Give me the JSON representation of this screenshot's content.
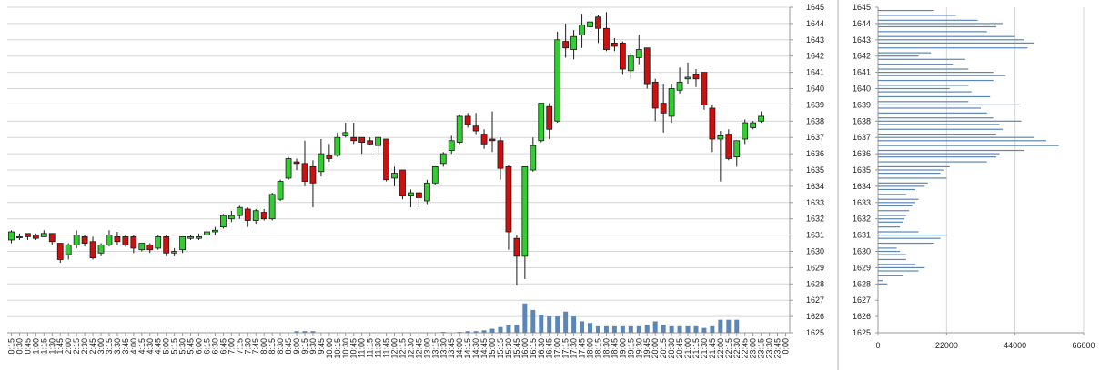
{
  "chart_data": [
    {
      "type": "candlestick",
      "y_ticks": [
        "1625",
        "1626",
        "1627",
        "1628",
        "1629",
        "1630",
        "1631",
        "1632",
        "1633",
        "1634",
        "1635",
        "1636",
        "1637",
        "1638",
        "1639",
        "1640",
        "1641",
        "1642",
        "1643",
        "1644",
        "1645"
      ],
      "ylim": [
        1625,
        1645
      ],
      "x_ticks": [
        "0:15",
        "0:30",
        "0:45",
        "1:00",
        "1:15",
        "1:30",
        "1:45",
        "2:00",
        "2:15",
        "2:30",
        "2:45",
        "3:00",
        "3:15",
        "3:30",
        "3:45",
        "4:00",
        "4:15",
        "4:30",
        "4:45",
        "5:00",
        "5:15",
        "5:30",
        "5:45",
        "6:00",
        "6:15",
        "6:30",
        "6:45",
        "7:00",
        "7:15",
        "7:30",
        "7:45",
        "8:00",
        "8:15",
        "8:30",
        "8:45",
        "9:00",
        "9:15",
        "9:30",
        "9:45",
        "10:00",
        "10:15",
        "10:30",
        "10:45",
        "11:00",
        "11:15",
        "11:30",
        "11:45",
        "12:00",
        "12:15",
        "12:30",
        "12:45",
        "13:00",
        "13:15",
        "13:30",
        "13:45",
        "14:00",
        "14:15",
        "14:30",
        "14:45",
        "15:00",
        "15:15",
        "15:30",
        "15:45",
        "16:00",
        "16:15",
        "16:30",
        "16:45",
        "17:00",
        "17:15",
        "17:30",
        "17:45",
        "18:00",
        "18:15",
        "18:30",
        "18:45",
        "19:00",
        "19:15",
        "19:30",
        "19:45",
        "20:00",
        "20:15",
        "20:30",
        "20:45",
        "21:00",
        "21:15",
        "21:30",
        "21:45",
        "22:00",
        "22:15",
        "22:30",
        "22:45",
        "23:00",
        "23:15",
        "23:30",
        "23:45",
        "0:00"
      ],
      "up_color": "#33cc33",
      "down_color": "#cc1111",
      "volume_color": "#5b86b8",
      "grid": true,
      "candles": [
        [
          1630.7,
          1631.2,
          1630.5,
          1631.3
        ],
        [
          1630.9,
          1630.9,
          1630.7,
          1631.1
        ],
        [
          1631.1,
          1630.9,
          1630.7,
          1631.1
        ],
        [
          1631.0,
          1630.8,
          1630.7,
          1631.1
        ],
        [
          1630.9,
          1631.1,
          1630.9,
          1631.3
        ],
        [
          1631.1,
          1630.6,
          1630.4,
          1631.1
        ],
        [
          1630.5,
          1629.5,
          1629.3,
          1630.5
        ],
        [
          1629.8,
          1630.4,
          1629.5,
          1630.5
        ],
        [
          1630.4,
          1631.0,
          1630.2,
          1631.3
        ],
        [
          1630.9,
          1630.5,
          1630.3,
          1631.0
        ],
        [
          1630.6,
          1629.6,
          1629.5,
          1630.9
        ],
        [
          1629.9,
          1630.4,
          1629.7,
          1630.5
        ],
        [
          1630.4,
          1631.0,
          1630.3,
          1631.3
        ],
        [
          1630.9,
          1630.6,
          1630.4,
          1631.2
        ],
        [
          1630.9,
          1630.4,
          1630.3,
          1631.0
        ],
        [
          1630.9,
          1630.2,
          1629.9,
          1631.0
        ],
        [
          1630.1,
          1630.5,
          1630.0,
          1630.5
        ],
        [
          1630.4,
          1630.1,
          1629.9,
          1630.5
        ],
        [
          1630.2,
          1630.9,
          1630.1,
          1631.0
        ],
        [
          1630.9,
          1629.9,
          1629.7,
          1631.0
        ],
        [
          1629.9,
          1630.0,
          1629.7,
          1630.2
        ],
        [
          1630.1,
          1630.9,
          1629.9,
          1630.9
        ],
        [
          1630.8,
          1630.9,
          1630.7,
          1631.0
        ],
        [
          1630.8,
          1630.9,
          1630.7,
          1631.1
        ],
        [
          1631.0,
          1631.2,
          1630.9,
          1631.2
        ],
        [
          1631.2,
          1631.3,
          1631.0,
          1631.5
        ],
        [
          1631.5,
          1632.2,
          1631.4,
          1632.3
        ],
        [
          1632.0,
          1632.2,
          1631.8,
          1632.5
        ],
        [
          1632.2,
          1632.7,
          1632.0,
          1632.8
        ],
        [
          1632.6,
          1631.9,
          1631.5,
          1632.7
        ],
        [
          1631.9,
          1632.5,
          1631.7,
          1632.6
        ],
        [
          1632.4,
          1632.0,
          1631.9,
          1632.6
        ],
        [
          1632.0,
          1633.5,
          1631.9,
          1633.6
        ],
        [
          1633.2,
          1634.3,
          1633.1,
          1634.4
        ],
        [
          1634.5,
          1635.7,
          1634.4,
          1635.8
        ],
        [
          1635.5,
          1635.4,
          1635.0,
          1635.7
        ],
        [
          1635.4,
          1634.3,
          1634.0,
          1636.8
        ],
        [
          1635.2,
          1634.2,
          1632.7,
          1635.6
        ],
        [
          1634.9,
          1636.0,
          1634.6,
          1636.9
        ],
        [
          1635.9,
          1635.7,
          1635.5,
          1636.6
        ],
        [
          1635.9,
          1637.0,
          1635.8,
          1637.3
        ],
        [
          1637.1,
          1637.3,
          1637.0,
          1637.9
        ],
        [
          1637.0,
          1636.8,
          1636.6,
          1637.9
        ],
        [
          1637.0,
          1636.7,
          1636.0,
          1637.0
        ],
        [
          1636.8,
          1636.6,
          1636.5,
          1637.0
        ],
        [
          1636.5,
          1637.0,
          1636.0,
          1637.1
        ],
        [
          1636.9,
          1634.4,
          1634.3,
          1636.9
        ],
        [
          1634.5,
          1634.8,
          1634.0,
          1635.2
        ],
        [
          1635.0,
          1633.4,
          1633.2,
          1635.0
        ],
        [
          1633.4,
          1633.6,
          1632.7,
          1633.8
        ],
        [
          1633.6,
          1633.3,
          1632.7,
          1633.6
        ],
        [
          1633.1,
          1634.2,
          1632.9,
          1634.4
        ],
        [
          1634.2,
          1635.2,
          1634.1,
          1635.2
        ],
        [
          1635.4,
          1636.0,
          1635.2,
          1636.1
        ],
        [
          1636.2,
          1636.8,
          1636.0,
          1637.1
        ],
        [
          1636.7,
          1638.3,
          1636.6,
          1638.4
        ],
        [
          1638.3,
          1637.8,
          1637.6,
          1638.5
        ],
        [
          1637.7,
          1637.4,
          1637.2,
          1638.5
        ],
        [
          1637.2,
          1636.6,
          1636.3,
          1637.5
        ],
        [
          1636.9,
          1636.8,
          1636.1,
          1638.6
        ],
        [
          1636.8,
          1635.1,
          1634.4,
          1637.0
        ],
        [
          1635.2,
          1631.2,
          1630.1,
          1635.3
        ],
        [
          1630.8,
          1629.7,
          1627.9,
          1631.0
        ],
        [
          1629.7,
          1635.2,
          1628.3,
          1635.2
        ],
        [
          1635.0,
          1636.5,
          1634.9,
          1637.0
        ],
        [
          1636.8,
          1639.1,
          1636.7,
          1639.1
        ],
        [
          1638.9,
          1637.5,
          1636.9,
          1639.1
        ],
        [
          1638.0,
          1643.0,
          1637.9,
          1643.5
        ],
        [
          1642.9,
          1642.5,
          1641.9,
          1644.0
        ],
        [
          1642.4,
          1643.2,
          1641.8,
          1643.6
        ],
        [
          1643.3,
          1643.9,
          1642.5,
          1644.6
        ],
        [
          1643.8,
          1644.1,
          1643.5,
          1644.6
        ],
        [
          1644.4,
          1643.7,
          1642.8,
          1644.5
        ],
        [
          1643.7,
          1642.4,
          1642.3,
          1644.7
        ],
        [
          1642.8,
          1642.6,
          1642.3,
          1643.1
        ],
        [
          1642.8,
          1641.2,
          1640.9,
          1642.9
        ],
        [
          1641.1,
          1642.0,
          1640.6,
          1642.2
        ],
        [
          1641.9,
          1642.4,
          1641.5,
          1643.3
        ],
        [
          1642.5,
          1640.3,
          1640.0,
          1642.5
        ],
        [
          1640.4,
          1638.8,
          1638.0,
          1640.6
        ],
        [
          1639.1,
          1638.5,
          1637.3,
          1640.3
        ],
        [
          1638.3,
          1640.0,
          1637.9,
          1640.3
        ],
        [
          1639.9,
          1640.4,
          1639.7,
          1641.3
        ],
        [
          1640.6,
          1640.7,
          1640.3,
          1641.6
        ],
        [
          1640.9,
          1640.6,
          1640.1,
          1641.2
        ],
        [
          1641.0,
          1639.0,
          1638.7,
          1641.0
        ],
        [
          1638.8,
          1636.9,
          1636.1,
          1639.0
        ],
        [
          1636.9,
          1637.1,
          1634.3,
          1637.4
        ],
        [
          1637.2,
          1635.7,
          1635.6,
          1637.5
        ],
        [
          1635.8,
          1636.8,
          1635.2,
          1636.8
        ],
        [
          1636.9,
          1637.9,
          1636.6,
          1638.1
        ],
        [
          1637.6,
          1637.9,
          1637.5,
          1638.0
        ],
        [
          1638.0,
          1638.3,
          1637.9,
          1638.6
        ]
      ],
      "volumes": [
        0,
        0,
        0,
        0,
        0,
        0,
        0,
        0,
        0,
        0,
        0,
        0,
        0,
        0,
        0,
        0,
        0,
        0,
        0,
        0,
        0,
        0,
        0,
        0,
        0,
        0,
        0,
        0,
        0,
        0,
        0,
        0,
        0,
        0,
        0,
        0.1,
        0.1,
        0.1,
        0,
        0,
        0,
        0,
        0,
        0,
        0,
        0,
        0,
        0,
        0,
        0,
        0,
        0,
        0,
        0.05,
        0,
        0.05,
        0.1,
        0.1,
        0.15,
        0.25,
        0.35,
        0.45,
        0.5,
        1.8,
        1.4,
        1.1,
        1.0,
        1.0,
        1.3,
        1.0,
        0.7,
        0.6,
        0.4,
        0.4,
        0.4,
        0.4,
        0.4,
        0.4,
        0.5,
        0.7,
        0.5,
        0.4,
        0.4,
        0.4,
        0.4,
        0.3,
        0.4,
        0.8,
        0.8,
        0.8
      ]
    },
    {
      "type": "horizontal-bar",
      "x_ticks": [
        "0",
        "22000",
        "44000",
        "66000"
      ],
      "xlim": [
        0,
        66000
      ],
      "y_ticks": [
        "1625",
        "1626",
        "1627",
        "1628",
        "1629",
        "1630",
        "1631",
        "1632",
        "1633",
        "1634",
        "1635",
        "1636",
        "1637",
        "1638",
        "1639",
        "1640",
        "1641",
        "1642",
        "1643",
        "1644",
        "1645"
      ],
      "ylim": [
        1625,
        1645
      ],
      "bar_color": "#5b86b8",
      "bins": [
        [
          1628.0,
          3000
        ],
        [
          1628.2,
          1500
        ],
        [
          1628.5,
          8000
        ],
        [
          1628.8,
          13000
        ],
        [
          1629.0,
          15000
        ],
        [
          1629.2,
          12000
        ],
        [
          1629.5,
          9000
        ],
        [
          1629.8,
          9000
        ],
        [
          1630.0,
          7000
        ],
        [
          1630.2,
          6000
        ],
        [
          1630.5,
          18000
        ],
        [
          1630.8,
          20000
        ],
        [
          1631.0,
          22000
        ],
        [
          1631.2,
          13000
        ],
        [
          1631.5,
          7000
        ],
        [
          1631.8,
          8000
        ],
        [
          1632.0,
          8500
        ],
        [
          1632.2,
          9000
        ],
        [
          1632.5,
          10000
        ],
        [
          1632.8,
          11000
        ],
        [
          1633.0,
          12000
        ],
        [
          1633.2,
          13000
        ],
        [
          1633.5,
          9000
        ],
        [
          1633.8,
          12000
        ],
        [
          1634.0,
          15000
        ],
        [
          1634.2,
          16000
        ],
        [
          1634.5,
          22000
        ],
        [
          1634.8,
          20000
        ],
        [
          1635.0,
          21000
        ],
        [
          1635.2,
          23000
        ],
        [
          1635.5,
          35000
        ],
        [
          1635.8,
          38000
        ],
        [
          1636.0,
          39000
        ],
        [
          1636.2,
          47000
        ],
        [
          1636.5,
          58000
        ],
        [
          1636.8,
          54000
        ],
        [
          1637.0,
          50000
        ],
        [
          1637.2,
          38000
        ],
        [
          1637.5,
          40000
        ],
        [
          1637.8,
          39000
        ],
        [
          1638.0,
          46000
        ],
        [
          1638.2,
          37000
        ],
        [
          1638.5,
          35000
        ],
        [
          1638.8,
          33000
        ],
        [
          1639.0,
          46000
        ],
        [
          1639.2,
          29000
        ],
        [
          1639.5,
          36000
        ],
        [
          1639.8,
          30000
        ],
        [
          1640.0,
          23000
        ],
        [
          1640.2,
          29000
        ],
        [
          1640.5,
          37000
        ],
        [
          1640.8,
          41000
        ],
        [
          1641.0,
          37000
        ],
        [
          1641.2,
          29000
        ],
        [
          1641.5,
          24000
        ],
        [
          1641.8,
          28000
        ],
        [
          1642.0,
          13000
        ],
        [
          1642.2,
          17000
        ],
        [
          1642.5,
          48000
        ],
        [
          1642.8,
          50000
        ],
        [
          1643.0,
          47000
        ],
        [
          1643.2,
          44000
        ],
        [
          1643.5,
          35000
        ],
        [
          1643.8,
          38000
        ],
        [
          1644.0,
          40000
        ],
        [
          1644.2,
          32000
        ],
        [
          1644.5,
          25000
        ],
        [
          1644.8,
          18000
        ]
      ]
    }
  ]
}
